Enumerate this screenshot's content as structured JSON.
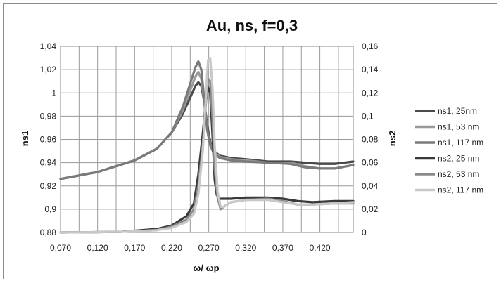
{
  "chart_data": {
    "type": "line",
    "title": "Au, ns, f=0,3",
    "xlabel": "ω/ ωp",
    "ylabel": "ns1",
    "y2label": "ns2",
    "xlim": [
      0.07,
      0.465
    ],
    "ylim": [
      0.88,
      1.04
    ],
    "y2lim": [
      0,
      0.16
    ],
    "x_ticks": [
      "0,070",
      "0,120",
      "0,170",
      "0,220",
      "0,270",
      "0,320",
      "0,370",
      "0,420"
    ],
    "x_tick_values": [
      0.07,
      0.12,
      0.17,
      0.22,
      0.27,
      0.32,
      0.37,
      0.42
    ],
    "y_ticks": [
      "0,88",
      "0,9",
      "0,92",
      "0,94",
      "0,96",
      "0,98",
      "1",
      "1,02",
      "1,04"
    ],
    "y_tick_values": [
      0.88,
      0.9,
      0.92,
      0.94,
      0.96,
      0.98,
      1.0,
      1.02,
      1.04
    ],
    "y2_ticks": [
      "0",
      "0,02",
      "0,04",
      "0,06",
      "0,08",
      "0,1",
      "0,12",
      "0,14",
      "0,16"
    ],
    "y2_tick_values": [
      0,
      0.02,
      0.04,
      0.06,
      0.08,
      0.1,
      0.12,
      0.14,
      0.16
    ],
    "grid": true,
    "legend_position": "right",
    "series": [
      {
        "name": "ns1, 25nm",
        "axis": "left",
        "color": "#4a4a4a",
        "x": [
          0.07,
          0.12,
          0.17,
          0.2,
          0.22,
          0.235,
          0.245,
          0.252,
          0.256,
          0.26,
          0.264,
          0.268,
          0.272,
          0.277,
          0.285,
          0.3,
          0.32,
          0.35,
          0.38,
          0.4,
          0.42,
          0.44,
          0.465
        ],
        "y": [
          0.926,
          0.932,
          0.942,
          0.952,
          0.966,
          0.982,
          0.996,
          1.006,
          1.009,
          1.006,
          0.992,
          0.972,
          0.958,
          0.95,
          0.946,
          0.944,
          0.943,
          0.941,
          0.941,
          0.94,
          0.939,
          0.939,
          0.941
        ]
      },
      {
        "name": "ns1, 53 nm",
        "axis": "left",
        "color": "#9a9a9a",
        "x": [
          0.07,
          0.12,
          0.17,
          0.2,
          0.22,
          0.235,
          0.245,
          0.252,
          0.256,
          0.26,
          0.264,
          0.268,
          0.272,
          0.277,
          0.285,
          0.3,
          0.32,
          0.35,
          0.38,
          0.4,
          0.42,
          0.44,
          0.465
        ],
        "y": [
          0.926,
          0.932,
          0.942,
          0.952,
          0.966,
          0.985,
          1.002,
          1.014,
          1.018,
          1.012,
          0.992,
          0.968,
          0.956,
          0.949,
          0.945,
          0.943,
          0.942,
          0.94,
          0.94,
          0.937,
          0.935,
          0.935,
          0.938
        ]
      },
      {
        "name": "ns1, 117 nm",
        "axis": "left",
        "color": "#7a7a7a",
        "x": [
          0.07,
          0.12,
          0.17,
          0.2,
          0.22,
          0.235,
          0.245,
          0.252,
          0.256,
          0.26,
          0.264,
          0.268,
          0.272,
          0.277,
          0.285,
          0.3,
          0.32,
          0.35,
          0.38,
          0.4,
          0.42,
          0.44,
          0.465
        ],
        "y": [
          0.926,
          0.932,
          0.942,
          0.952,
          0.966,
          0.988,
          1.008,
          1.022,
          1.027,
          1.02,
          0.994,
          0.968,
          0.955,
          0.948,
          0.944,
          0.942,
          0.941,
          0.94,
          0.939,
          0.936,
          0.935,
          0.935,
          0.938
        ]
      },
      {
        "name": "ns2, 25 nm",
        "axis": "right",
        "color": "#3a3a3a",
        "x": [
          0.07,
          0.15,
          0.2,
          0.22,
          0.24,
          0.25,
          0.256,
          0.262,
          0.266,
          0.269,
          0.272,
          0.275,
          0.278,
          0.281,
          0.285,
          0.29,
          0.3,
          0.32,
          0.35,
          0.37,
          0.39,
          0.41,
          0.44,
          0.465
        ],
        "y": [
          0.0,
          0.0005,
          0.003,
          0.006,
          0.014,
          0.025,
          0.05,
          0.085,
          0.112,
          0.125,
          0.12,
          0.085,
          0.045,
          0.032,
          0.029,
          0.029,
          0.029,
          0.03,
          0.03,
          0.029,
          0.027,
          0.026,
          0.027,
          0.027
        ]
      },
      {
        "name": "ns2, 53 nm",
        "axis": "right",
        "color": "#8a8a8a",
        "x": [
          0.07,
          0.15,
          0.2,
          0.22,
          0.24,
          0.25,
          0.256,
          0.262,
          0.266,
          0.269,
          0.272,
          0.275,
          0.278,
          0.282,
          0.286,
          0.29,
          0.3,
          0.32,
          0.35,
          0.37,
          0.39,
          0.41,
          0.44,
          0.465
        ],
        "y": [
          0.0,
          0.0005,
          0.002,
          0.005,
          0.011,
          0.02,
          0.04,
          0.075,
          0.11,
          0.132,
          0.13,
          0.1,
          0.055,
          0.03,
          0.02,
          0.022,
          0.026,
          0.028,
          0.029,
          0.027,
          0.024,
          0.024,
          0.025,
          0.025
        ]
      },
      {
        "name": "ns2, 117 nm",
        "axis": "right",
        "color": "#c8c8c8",
        "x": [
          0.07,
          0.15,
          0.2,
          0.22,
          0.24,
          0.25,
          0.256,
          0.262,
          0.266,
          0.269,
          0.272,
          0.275,
          0.278,
          0.282,
          0.286,
          0.29,
          0.3,
          0.32,
          0.35,
          0.37,
          0.39,
          0.41,
          0.44,
          0.465
        ],
        "y": [
          0.0,
          0.0005,
          0.002,
          0.004,
          0.009,
          0.016,
          0.033,
          0.07,
          0.115,
          0.148,
          0.15,
          0.125,
          0.075,
          0.035,
          0.022,
          0.022,
          0.026,
          0.028,
          0.028,
          0.026,
          0.024,
          0.024,
          0.025,
          0.026
        ]
      }
    ]
  }
}
